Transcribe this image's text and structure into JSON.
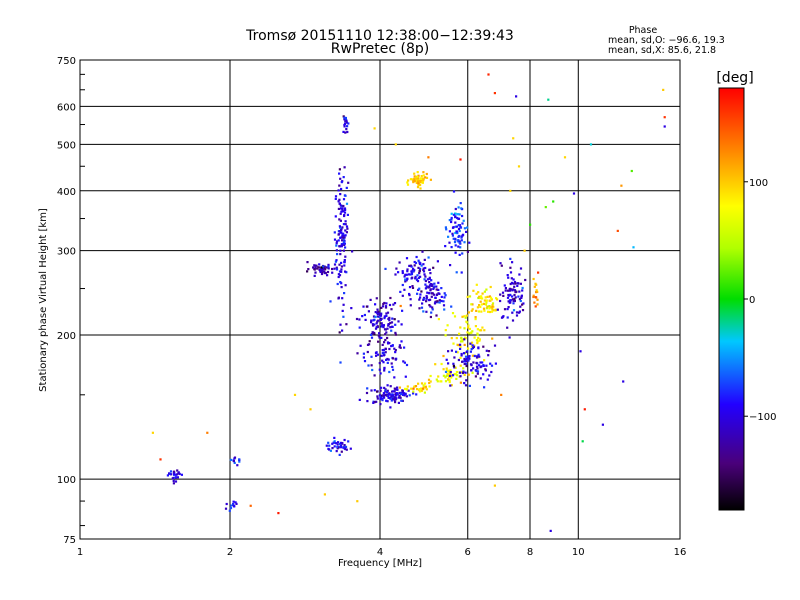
{
  "chart_data": {
    "type": "scatter",
    "title": "Tromsø 20151110 12:38:00−12:39:43",
    "subtitle": "RwPretec (8p)",
    "xlabel": "Frequency [MHz]",
    "ylabel": "Stationary phase Virtual Height [km]",
    "x_scale": "log",
    "y_scale": "log",
    "xlim": [
      1,
      16
    ],
    "ylim": [
      75,
      750
    ],
    "x_ticks": [
      1,
      2,
      4,
      6,
      8,
      10,
      16
    ],
    "y_ticks": [
      75,
      100,
      200,
      300,
      400,
      500,
      600,
      750
    ],
    "grid": true,
    "stats": {
      "heading": "Phase",
      "line_o": "mean, sd,O: −96.6, 19.3",
      "line_x": "mean, sd,X:  85.6, 21.8"
    },
    "colorbar": {
      "label": "[deg]",
      "range": [
        -180,
        180
      ],
      "ticks": [
        100,
        0,
        -100
      ],
      "tick_labels": [
        "100",
        "0",
        "−100"
      ]
    },
    "series": [
      {
        "clusters": [
          {
            "f": 1.55,
            "h": 102,
            "phase": -95,
            "n": 25,
            "sf": 0.05,
            "sh": 3
          },
          {
            "f": 2.05,
            "h": 110,
            "phase": -90,
            "n": 10,
            "sf": 0.05,
            "sh": 3
          },
          {
            "f": 2.0,
            "h": 88,
            "phase": -95,
            "n": 12,
            "sf": 0.08,
            "sh": 2
          },
          {
            "f": 3.3,
            "h": 117,
            "phase": -95,
            "n": 40,
            "sf": 0.2,
            "sh": 4
          },
          {
            "f": 3.05,
            "h": 275,
            "phase": -120,
            "n": 45,
            "sf": 0.18,
            "sh": 8
          },
          {
            "f": 3.35,
            "h": 320,
            "phase": -100,
            "n": 140,
            "sf": 0.1,
            "sh": 110
          },
          {
            "f": 3.4,
            "h": 550,
            "phase": -100,
            "n": 18,
            "sf": 0.05,
            "sh": 25
          },
          {
            "f": 4.0,
            "h": 215,
            "phase": -110,
            "n": 120,
            "sf": 0.35,
            "sh": 25
          },
          {
            "f": 4.2,
            "h": 150,
            "phase": -105,
            "n": 110,
            "sf": 0.45,
            "sh": 6
          },
          {
            "f": 4.1,
            "h": 180,
            "phase": -100,
            "n": 60,
            "sf": 0.4,
            "sh": 15
          },
          {
            "f": 4.7,
            "h": 270,
            "phase": -100,
            "n": 90,
            "sf": 0.4,
            "sh": 25
          },
          {
            "f": 5.1,
            "h": 240,
            "phase": -100,
            "n": 80,
            "sf": 0.35,
            "sh": 20
          },
          {
            "f": 5.7,
            "h": 330,
            "phase": -80,
            "n": 80,
            "sf": 0.25,
            "sh": 50
          },
          {
            "f": 4.8,
            "h": 420,
            "phase": 95,
            "n": 60,
            "sf": 0.2,
            "sh": 12
          },
          {
            "f": 5.5,
            "h": 165,
            "phase": 80,
            "n": 50,
            "sf": 0.4,
            "sh": 8
          },
          {
            "f": 6.0,
            "h": 200,
            "phase": 80,
            "n": 70,
            "sf": 0.5,
            "sh": 25
          },
          {
            "f": 6.1,
            "h": 175,
            "phase": -105,
            "n": 100,
            "sf": 0.7,
            "sh": 15
          },
          {
            "f": 6.5,
            "h": 235,
            "phase": 90,
            "n": 60,
            "sf": 0.5,
            "sh": 20
          },
          {
            "f": 7.4,
            "h": 245,
            "phase": -105,
            "n": 90,
            "sf": 0.4,
            "sh": 35
          },
          {
            "f": 8.2,
            "h": 240,
            "phase": 120,
            "n": 15,
            "sf": 0.1,
            "sh": 20
          },
          {
            "f": 4.8,
            "h": 155,
            "phase": 90,
            "n": 30,
            "sf": 0.35,
            "sh": 5
          }
        ],
        "sparse_points": [
          [
            1.4,
            125,
            95
          ],
          [
            1.45,
            110,
            160
          ],
          [
            1.8,
            125,
            130
          ],
          [
            2.2,
            88,
            140
          ],
          [
            2.7,
            150,
            95
          ],
          [
            2.9,
            140,
            100
          ],
          [
            3.1,
            93,
            100
          ],
          [
            3.6,
            90,
            100
          ],
          [
            3.9,
            540,
            95
          ],
          [
            4.3,
            500,
            95
          ],
          [
            4.4,
            230,
            130
          ],
          [
            5.8,
            465,
            170
          ],
          [
            6.6,
            700,
            165
          ],
          [
            6.8,
            640,
            160
          ],
          [
            7.4,
            515,
            95
          ],
          [
            7.5,
            630,
            -100
          ],
          [
            7.6,
            450,
            95
          ],
          [
            8.7,
            620,
            -20
          ],
          [
            8.9,
            380,
            10
          ],
          [
            9.4,
            470,
            95
          ],
          [
            9.8,
            395,
            -100
          ],
          [
            10.1,
            185,
            -100
          ],
          [
            10.3,
            140,
            170
          ],
          [
            10.6,
            500,
            -30
          ],
          [
            10.2,
            120,
            -10
          ],
          [
            11.2,
            130,
            -100
          ],
          [
            12.0,
            330,
            150
          ],
          [
            12.2,
            410,
            120
          ],
          [
            12.8,
            440,
            20
          ],
          [
            12.9,
            305,
            -40
          ],
          [
            14.8,
            650,
            100
          ],
          [
            14.9,
            545,
            -100
          ],
          [
            14.9,
            570,
            160
          ],
          [
            12.3,
            160,
            -100
          ],
          [
            8.8,
            78,
            -100
          ],
          [
            6.8,
            97,
            100
          ],
          [
            8.3,
            270,
            160
          ],
          [
            7.8,
            300,
            100
          ],
          [
            8.0,
            340,
            10
          ],
          [
            7.0,
            150,
            130
          ],
          [
            2.5,
            85,
            170
          ],
          [
            5.0,
            470,
            130
          ],
          [
            8.6,
            370,
            25
          ],
          [
            7.3,
            400,
            95
          ]
        ]
      }
    ]
  }
}
